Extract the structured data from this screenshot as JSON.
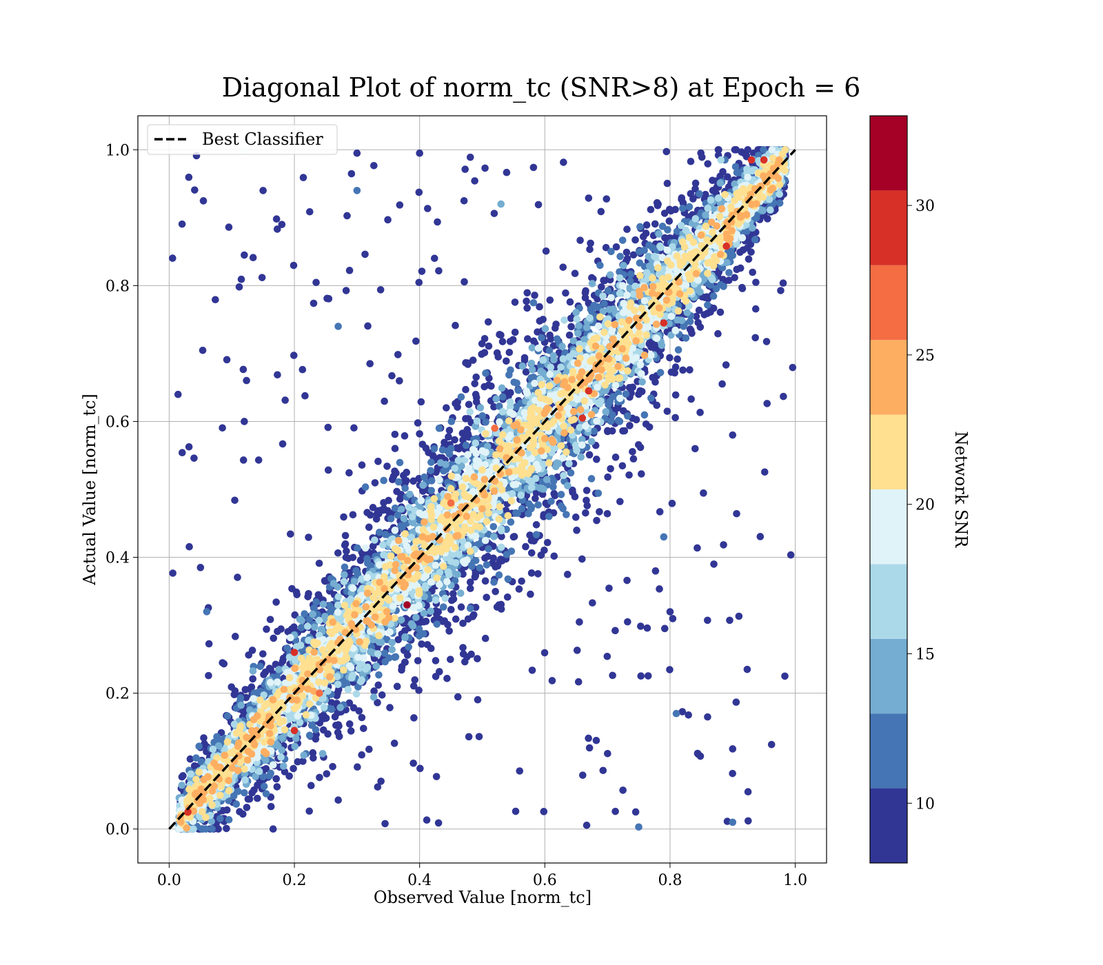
{
  "chart_data": {
    "type": "scatter",
    "title": "Diagonal Plot of norm_tc (SNR>8) at Epoch = 6",
    "xlabel": "Observed Value [norm_tc]",
    "ylabel": "Actual Value [norm_tc]",
    "xlim": [
      -0.05,
      1.05
    ],
    "ylim": [
      -0.05,
      1.05
    ],
    "xticks": [
      "0.0",
      "0.2",
      "0.4",
      "0.6",
      "0.8",
      "1.0"
    ],
    "yticks": [
      "0.0",
      "0.2",
      "0.4",
      "0.6",
      "0.8",
      "1.0"
    ],
    "grid": true,
    "legend": {
      "placement": "top-left",
      "entries": [
        {
          "label": "Best Classifier",
          "style": "black dashed line"
        }
      ]
    },
    "reference_line": {
      "x": [
        0,
        1
      ],
      "y": [
        0,
        1
      ],
      "color": "#000000",
      "dash": true
    },
    "colorbar": {
      "label": "Network SNR",
      "range": [
        8,
        33
      ],
      "ticks": [
        "10",
        "15",
        "20",
        "25",
        "30"
      ],
      "bins": [
        {
          "from": 8.0,
          "to": 10.5,
          "color": "#313695"
        },
        {
          "from": 10.5,
          "to": 13.0,
          "color": "#4575b4"
        },
        {
          "from": 13.0,
          "to": 15.5,
          "color": "#74add1"
        },
        {
          "from": 15.5,
          "to": 18.0,
          "color": "#abd9e9"
        },
        {
          "from": 18.0,
          "to": 20.5,
          "color": "#e0f3f8"
        },
        {
          "from": 20.5,
          "to": 23.0,
          "color": "#fee090"
        },
        {
          "from": 23.0,
          "to": 25.5,
          "color": "#fdae61"
        },
        {
          "from": 25.5,
          "to": 28.0,
          "color": "#f46d43"
        },
        {
          "from": 28.0,
          "to": 30.5,
          "color": "#d73027"
        },
        {
          "from": 30.5,
          "to": 33.0,
          "color": "#a50026"
        }
      ]
    },
    "series": [
      {
        "description_of_distribution": "dense band around y = x; spread shrinks as SNR increases",
        "points": [
          {
            "x": 0.03,
            "y": 0.025,
            "snr": 29
          },
          {
            "x": 0.38,
            "y": 0.33,
            "snr": 31
          },
          {
            "x": 0.93,
            "y": 0.985,
            "snr": 29
          },
          {
            "x": 0.95,
            "y": 0.985,
            "snr": 29
          },
          {
            "x": 0.89,
            "y": 0.858,
            "snr": 29
          },
          {
            "x": 0.79,
            "y": 0.745,
            "snr": 29
          },
          {
            "x": 0.67,
            "y": 0.645,
            "snr": 29
          },
          {
            "x": 0.66,
            "y": 0.605,
            "snr": 29
          },
          {
            "x": 0.2,
            "y": 0.26,
            "snr": 29
          },
          {
            "x": 0.2,
            "y": 0.145,
            "snr": 29
          },
          {
            "x": 0.24,
            "y": 0.2,
            "snr": 27
          },
          {
            "x": 0.52,
            "y": 0.59,
            "snr": 27
          },
          {
            "x": 0.45,
            "y": 0.48,
            "snr": 27
          },
          {
            "x": 0.12,
            "y": 0.998,
            "snr": 18
          },
          {
            "x": 0.15,
            "y": 0.94,
            "snr": 9
          },
          {
            "x": 0.3,
            "y": 0.995,
            "snr": 9
          },
          {
            "x": 0.4,
            "y": 0.995,
            "snr": 9
          },
          {
            "x": 0.18,
            "y": 0.89,
            "snr": 9
          },
          {
            "x": 0.12,
            "y": 0.845,
            "snr": 9
          },
          {
            "x": 0.05,
            "y": 0.385,
            "snr": 9
          },
          {
            "x": 0.12,
            "y": 0.6,
            "snr": 9
          },
          {
            "x": 0.9,
            "y": 0.58,
            "snr": 9
          },
          {
            "x": 0.84,
            "y": 0.56,
            "snr": 9
          },
          {
            "x": 0.87,
            "y": 0.39,
            "snr": 9
          },
          {
            "x": 0.9,
            "y": 0.118,
            "snr": 9
          },
          {
            "x": 0.9,
            "y": 0.01,
            "snr": 12
          },
          {
            "x": 0.75,
            "y": 0.003,
            "snr": 12
          },
          {
            "x": 0.86,
            "y": 0.165,
            "snr": 9
          },
          {
            "x": 0.81,
            "y": 0.17,
            "snr": 12
          },
          {
            "x": 0.79,
            "y": 0.43,
            "snr": 12
          },
          {
            "x": 0.3,
            "y": 0.94,
            "snr": 12
          },
          {
            "x": 0.53,
            "y": 0.92,
            "snr": 14
          },
          {
            "x": 0.27,
            "y": 0.74,
            "snr": 12
          },
          {
            "x": 0.06,
            "y": 0.32,
            "snr": 12
          }
        ]
      }
    ]
  }
}
